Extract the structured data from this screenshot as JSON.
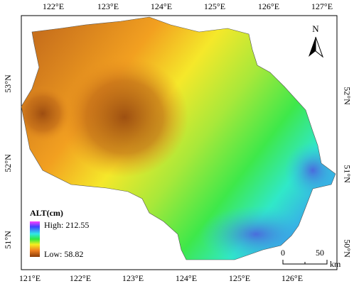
{
  "map": {
    "top_labels": [
      "122°E",
      "123°E",
      "124°E",
      "125°E",
      "126°E",
      "127°E"
    ],
    "bottom_labels": [
      "121°E",
      "122°E",
      "123°E",
      "124°E",
      "125°E",
      "126°E"
    ],
    "left_labels": [
      "53°N",
      "52°N",
      "51°N"
    ],
    "right_labels": [
      "52°N",
      "51°N",
      "50°N"
    ],
    "north": "N",
    "legend": {
      "title": "ALT(cm)",
      "high": "High: 212.55",
      "low": "Low: 58.82"
    },
    "scale_bar": {
      "start": "0",
      "end": "50",
      "unit": "km"
    }
  }
}
